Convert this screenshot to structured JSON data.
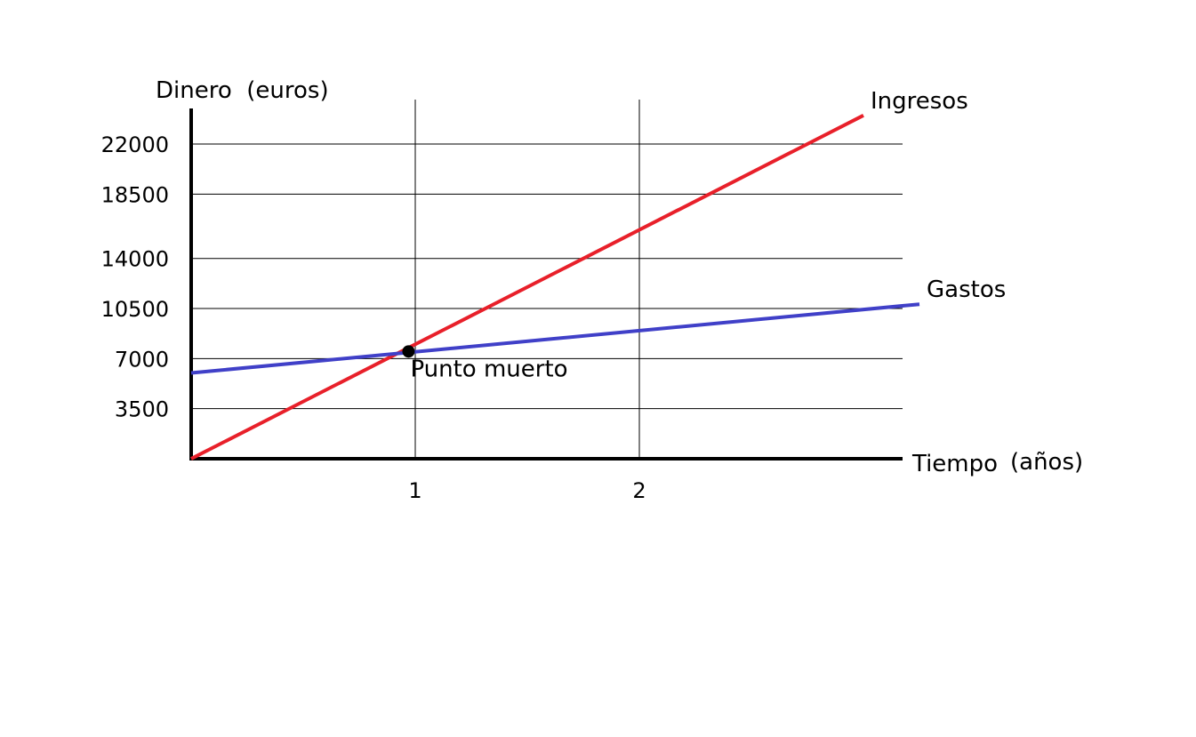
{
  "chart_data": {
    "type": "line",
    "title": "",
    "ylabel": "Dinero  (euros)",
    "xlabel": "Tiempo",
    "xlabel_unit": "(años)",
    "y_ticks": [
      3500,
      7000,
      10500,
      14000,
      18500,
      22000
    ],
    "x_ticks": [
      1,
      2
    ],
    "grid": true,
    "series": [
      {
        "name": "Ingresos",
        "color": "#e8202a",
        "points": [
          [
            0,
            0
          ],
          [
            3.0,
            24000
          ]
        ]
      },
      {
        "name": "Gastos",
        "color": "#4040c8",
        "points": [
          [
            0,
            6000
          ],
          [
            3.25,
            10800
          ]
        ]
      }
    ],
    "annotations": [
      {
        "text": "Punto muerto",
        "x": 0.97,
        "y": 7500
      }
    ]
  }
}
